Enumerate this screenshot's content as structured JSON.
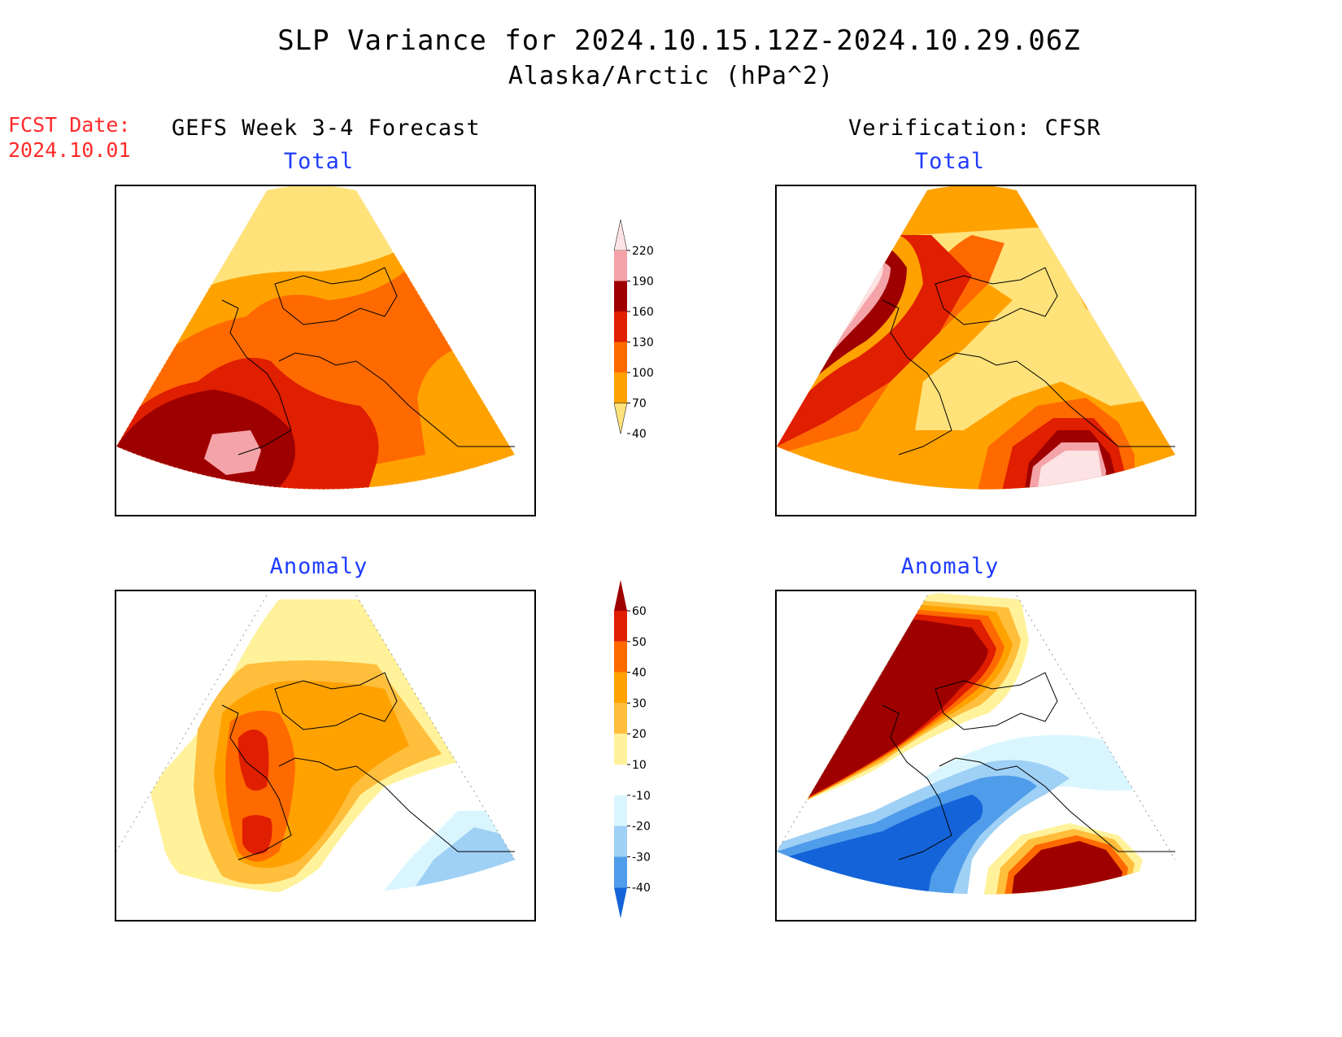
{
  "title": {
    "line1": "SLP Variance for 2024.10.15.12Z-2024.10.29.06Z",
    "line2": "Alaska/Arctic (hPa^2)"
  },
  "forecast_date": {
    "label": "FCST Date:",
    "value": "2024.10.01"
  },
  "columns": {
    "left": "GEFS Week 3-4 Forecast",
    "right": "Verification: CFSR"
  },
  "panels": {
    "forecast_total": "Total",
    "verification_total": "Total",
    "forecast_anomaly": "Anomaly",
    "verification_anomaly": "Anomaly"
  },
  "colorbars": {
    "total": {
      "labels": [
        "220",
        "190",
        "160",
        "130",
        "100",
        "70",
        "40"
      ],
      "colors": [
        "#fde3e3",
        "#f4a3a8",
        "#9e0000",
        "#e01e00",
        "#ff6a00",
        "#ffa200",
        "#ffe27a"
      ]
    },
    "anomaly": {
      "labels": [
        "60",
        "50",
        "40",
        "30",
        "20",
        "10",
        "-10",
        "-20",
        "-30",
        "-40"
      ],
      "colors": [
        "#9e0000",
        "#e01e00",
        "#ff6a00",
        "#ffa200",
        "#ffbe3c",
        "#fff29a",
        "#ffffff",
        "#d9f6ff",
        "#9fd0f5",
        "#4f9cea",
        "#1463d8"
      ]
    }
  },
  "map_colors": {
    "c40": "#ffe27a",
    "c70": "#ffa200",
    "c100": "#ff6a00",
    "c130": "#e01e00",
    "c160": "#9e0000",
    "c190": "#f4a3a8",
    "c220": "#fde3e3",
    "a_neg40": "#1463d8",
    "a_neg30": "#4f9cea",
    "a_neg20": "#9fd0f5",
    "a_neg10": "#d9f6ff"
  }
}
